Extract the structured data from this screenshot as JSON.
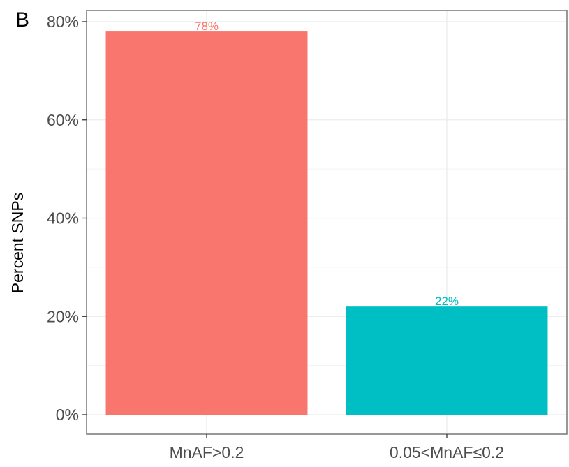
{
  "panel_label": "B",
  "chart_data": {
    "type": "bar",
    "categories": [
      "MnAF>0.2",
      "0.05<MnAF≤0.2"
    ],
    "values": [
      78,
      22
    ],
    "data_labels": [
      "78%",
      "22%"
    ],
    "colors": [
      "#f8766d",
      "#00bfc4"
    ],
    "title": "",
    "xlabel": "",
    "ylabel": "Percent SNPs",
    "ylim": [
      0,
      80
    ],
    "y_ticks": [
      0,
      20,
      40,
      60,
      80
    ],
    "y_tick_labels": [
      "0%",
      "20%",
      "40%",
      "60%",
      "80%"
    ],
    "grid": true,
    "legend": "none"
  }
}
